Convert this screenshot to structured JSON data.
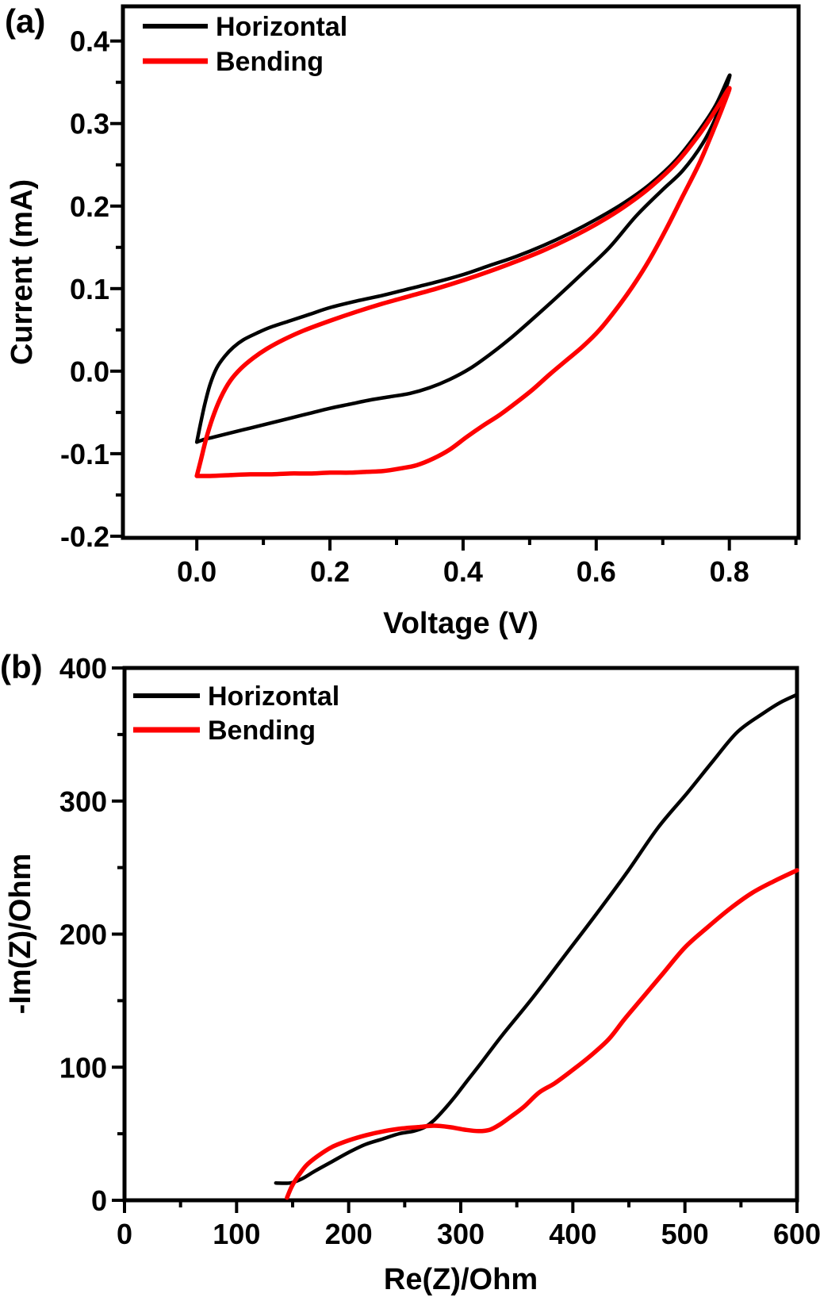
{
  "figure": {
    "background": "#ffffff",
    "text_color": "#000000"
  },
  "chart_data": [
    {
      "id": "cv-curve",
      "type": "line",
      "panel_label": "(a)",
      "title": "",
      "xlabel": "Voltage (V)",
      "ylabel": "Current (mA)",
      "xlim": [
        -0.111,
        0.904
      ],
      "ylim": [
        -0.202,
        0.442
      ],
      "grid": false,
      "legend_position": "top-left",
      "xticks": [
        {
          "v": 0.0,
          "label": "0.0"
        },
        {
          "v": 0.2,
          "label": "0.2"
        },
        {
          "v": 0.4,
          "label": "0.4"
        },
        {
          "v": 0.6,
          "label": "0.6"
        },
        {
          "v": 0.8,
          "label": "0.8"
        }
      ],
      "yticks": [
        {
          "v": 0.4,
          "label": "0.4"
        },
        {
          "v": 0.3,
          "label": "0.3"
        },
        {
          "v": 0.2,
          "label": "0.2"
        },
        {
          "v": 0.1,
          "label": "0.1"
        },
        {
          "v": 0.0,
          "label": "0.0"
        },
        {
          "v": -0.1,
          "label": "-0.1"
        },
        {
          "v": -0.2,
          "label": "-0.2"
        }
      ],
      "xminor": [
        0.1,
        0.3,
        0.5,
        0.7,
        0.9
      ],
      "yminor": [
        0.35,
        0.25,
        0.15,
        0.05,
        -0.05,
        -0.15
      ],
      "series": [
        {
          "name": "Horizontal",
          "color": "#000000",
          "width": 4.5,
          "points": [
            [
              0.0,
              -0.086
            ],
            [
              0.005,
              -0.066
            ],
            [
              0.012,
              -0.04
            ],
            [
              0.02,
              -0.016
            ],
            [
              0.03,
              0.004
            ],
            [
              0.042,
              0.018
            ],
            [
              0.055,
              0.029
            ],
            [
              0.07,
              0.038
            ],
            [
              0.09,
              0.046
            ],
            [
              0.11,
              0.053
            ],
            [
              0.14,
              0.061
            ],
            [
              0.17,
              0.069
            ],
            [
              0.2,
              0.077
            ],
            [
              0.24,
              0.085
            ],
            [
              0.28,
              0.092
            ],
            [
              0.32,
              0.1
            ],
            [
              0.36,
              0.108
            ],
            [
              0.4,
              0.117
            ],
            [
              0.44,
              0.128
            ],
            [
              0.48,
              0.139
            ],
            [
              0.52,
              0.152
            ],
            [
              0.56,
              0.167
            ],
            [
              0.6,
              0.184
            ],
            [
              0.64,
              0.203
            ],
            [
              0.68,
              0.226
            ],
            [
              0.72,
              0.256
            ],
            [
              0.755,
              0.292
            ],
            [
              0.78,
              0.323
            ],
            [
              0.8,
              0.358
            ],
            [
              0.795,
              0.343
            ],
            [
              0.78,
              0.308
            ],
            [
              0.76,
              0.276
            ],
            [
              0.73,
              0.243
            ],
            [
              0.7,
              0.22
            ],
            [
              0.66,
              0.188
            ],
            [
              0.62,
              0.15
            ],
            [
              0.58,
              0.119
            ],
            [
              0.54,
              0.089
            ],
            [
              0.5,
              0.06
            ],
            [
              0.47,
              0.039
            ],
            [
              0.44,
              0.02
            ],
            [
              0.41,
              0.003
            ],
            [
              0.38,
              -0.01
            ],
            [
              0.35,
              -0.02
            ],
            [
              0.32,
              -0.027
            ],
            [
              0.29,
              -0.031
            ],
            [
              0.26,
              -0.035
            ],
            [
              0.23,
              -0.04
            ],
            [
              0.2,
              -0.045
            ],
            [
              0.17,
              -0.051
            ],
            [
              0.14,
              -0.057
            ],
            [
              0.11,
              -0.063
            ],
            [
              0.08,
              -0.069
            ],
            [
              0.05,
              -0.075
            ],
            [
              0.025,
              -0.08
            ],
            [
              0.01,
              -0.083
            ],
            [
              0.0,
              -0.086
            ]
          ]
        },
        {
          "name": "Bending",
          "color": "#fe0000",
          "width": 5.5,
          "points": [
            [
              0.0,
              -0.127
            ],
            [
              0.006,
              -0.108
            ],
            [
              0.014,
              -0.082
            ],
            [
              0.024,
              -0.056
            ],
            [
              0.036,
              -0.032
            ],
            [
              0.05,
              -0.012
            ],
            [
              0.066,
              0.003
            ],
            [
              0.085,
              0.016
            ],
            [
              0.105,
              0.027
            ],
            [
              0.13,
              0.038
            ],
            [
              0.16,
              0.049
            ],
            [
              0.2,
              0.061
            ],
            [
              0.24,
              0.072
            ],
            [
              0.28,
              0.082
            ],
            [
              0.32,
              0.091
            ],
            [
              0.36,
              0.1
            ],
            [
              0.4,
              0.11
            ],
            [
              0.44,
              0.121
            ],
            [
              0.48,
              0.133
            ],
            [
              0.52,
              0.146
            ],
            [
              0.56,
              0.161
            ],
            [
              0.6,
              0.178
            ],
            [
              0.64,
              0.198
            ],
            [
              0.68,
              0.222
            ],
            [
              0.72,
              0.252
            ],
            [
              0.755,
              0.287
            ],
            [
              0.78,
              0.317
            ],
            [
              0.8,
              0.343
            ],
            [
              0.79,
              0.32
            ],
            [
              0.775,
              0.29
            ],
            [
              0.755,
              0.252
            ],
            [
              0.73,
              0.212
            ],
            [
              0.705,
              0.172
            ],
            [
              0.68,
              0.135
            ],
            [
              0.655,
              0.103
            ],
            [
              0.63,
              0.075
            ],
            [
              0.605,
              0.05
            ],
            [
              0.58,
              0.03
            ],
            [
              0.555,
              0.013
            ],
            [
              0.53,
              -0.004
            ],
            [
              0.505,
              -0.022
            ],
            [
              0.48,
              -0.038
            ],
            [
              0.455,
              -0.053
            ],
            [
              0.43,
              -0.066
            ],
            [
              0.405,
              -0.08
            ],
            [
              0.38,
              -0.095
            ],
            [
              0.355,
              -0.106
            ],
            [
              0.33,
              -0.114
            ],
            [
              0.305,
              -0.118
            ],
            [
              0.28,
              -0.121
            ],
            [
              0.255,
              -0.122
            ],
            [
              0.23,
              -0.123
            ],
            [
              0.2,
              -0.123
            ],
            [
              0.17,
              -0.124
            ],
            [
              0.14,
              -0.124
            ],
            [
              0.11,
              -0.125
            ],
            [
              0.08,
              -0.125
            ],
            [
              0.05,
              -0.126
            ],
            [
              0.02,
              -0.127
            ],
            [
              0.0,
              -0.127
            ]
          ]
        }
      ]
    },
    {
      "id": "nyquist",
      "type": "line",
      "panel_label": "(b)",
      "title": "",
      "xlabel": "Re(Z)/Ohm",
      "ylabel": "-Im(Z)/Ohm",
      "xlim": [
        0,
        600
      ],
      "ylim": [
        0,
        400
      ],
      "grid": false,
      "legend_position": "top-left",
      "xticks": [
        {
          "v": 0,
          "label": "0"
        },
        {
          "v": 100,
          "label": "100"
        },
        {
          "v": 200,
          "label": "200"
        },
        {
          "v": 300,
          "label": "300"
        },
        {
          "v": 400,
          "label": "400"
        },
        {
          "v": 500,
          "label": "500"
        },
        {
          "v": 600,
          "label": "600"
        }
      ],
      "yticks": [
        {
          "v": 400,
          "label": "400"
        },
        {
          "v": 300,
          "label": "300"
        },
        {
          "v": 200,
          "label": "200"
        },
        {
          "v": 100,
          "label": "100"
        },
        {
          "v": 0,
          "label": "0"
        }
      ],
      "xminor": [
        50,
        150,
        250,
        350,
        450,
        550
      ],
      "yminor": [
        50,
        150,
        250,
        350
      ],
      "series": [
        {
          "name": "Horizontal",
          "color": "#000000",
          "width": 4.5,
          "points": [
            [
              135,
              13
            ],
            [
              148,
              13
            ],
            [
              158,
              16
            ],
            [
              170,
              22
            ],
            [
              185,
              29
            ],
            [
              200,
              36
            ],
            [
              215,
              42
            ],
            [
              230,
              46
            ],
            [
              245,
              50
            ],
            [
              258,
              52
            ],
            [
              268,
              55
            ],
            [
              276,
              60
            ],
            [
              285,
              68
            ],
            [
              295,
              78
            ],
            [
              305,
              89
            ],
            [
              318,
              103
            ],
            [
              337,
              124
            ],
            [
              364,
              152
            ],
            [
              392,
              183
            ],
            [
              420,
              214
            ],
            [
              448,
              246
            ],
            [
              476,
              280
            ],
            [
              502,
              306
            ],
            [
              525,
              330
            ],
            [
              547,
              352
            ],
            [
              570,
              366
            ],
            [
              585,
              374
            ],
            [
              600,
              380
            ]
          ]
        },
        {
          "name": "Bending",
          "color": "#fe0000",
          "width": 5.5,
          "points": [
            [
              145,
              2
            ],
            [
              149,
              10
            ],
            [
              154,
              17
            ],
            [
              162,
              26
            ],
            [
              172,
              33
            ],
            [
              185,
              40
            ],
            [
              200,
              45
            ],
            [
              216,
              49
            ],
            [
              232,
              52
            ],
            [
              248,
              54
            ],
            [
              262,
              55
            ],
            [
              276,
              56
            ],
            [
              290,
              55
            ],
            [
              304,
              53
            ],
            [
              316,
              52
            ],
            [
              326,
              53
            ],
            [
              335,
              57
            ],
            [
              345,
              63
            ],
            [
              356,
              70
            ],
            [
              370,
              81
            ],
            [
              384,
              88
            ],
            [
              400,
              98
            ],
            [
              415,
              108
            ],
            [
              432,
              121
            ],
            [
              446,
              136
            ],
            [
              462,
              152
            ],
            [
              480,
              170
            ],
            [
              500,
              190
            ],
            [
              520,
              205
            ],
            [
              540,
              219
            ],
            [
              560,
              231
            ],
            [
              580,
              240
            ],
            [
              600,
              248
            ]
          ]
        }
      ]
    }
  ]
}
